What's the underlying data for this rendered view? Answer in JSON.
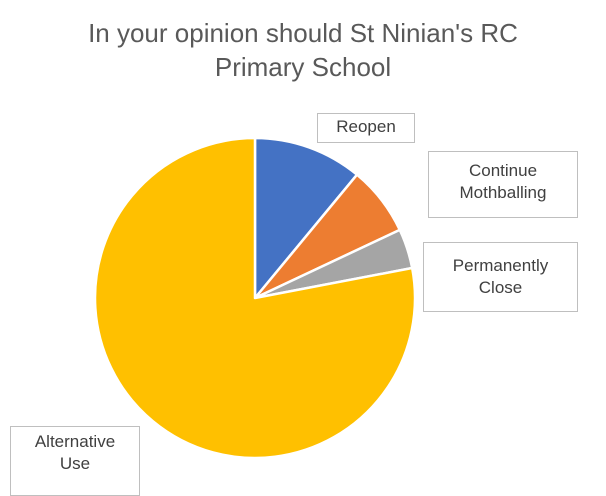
{
  "chart_data": {
    "type": "pie",
    "title": "In your opinion should St Ninian's RC Primary School",
    "title_lines": [
      "In your opinion should St Ninian's RC",
      "Primary School"
    ],
    "slices": [
      {
        "label": "Reopen",
        "label_lines": [
          "Reopen"
        ],
        "value": 11,
        "color": "#4472C4"
      },
      {
        "label": "Continue Mothballing",
        "label_lines": [
          "Continue",
          "Mothballing"
        ],
        "value": 7,
        "color": "#ED7D31"
      },
      {
        "label": "Permanently Close",
        "label_lines": [
          "Permanently",
          "Close"
        ],
        "value": 4,
        "color": "#A5A5A5"
      },
      {
        "label": "Alternative Use",
        "label_lines": [
          "Alternative",
          "Use"
        ],
        "value": 78,
        "color": "#FFC000"
      }
    ],
    "start_angle": "12 o'clock",
    "direction": "clockwise",
    "legend": "none",
    "data_labels": "category names in outlined callout boxes"
  }
}
